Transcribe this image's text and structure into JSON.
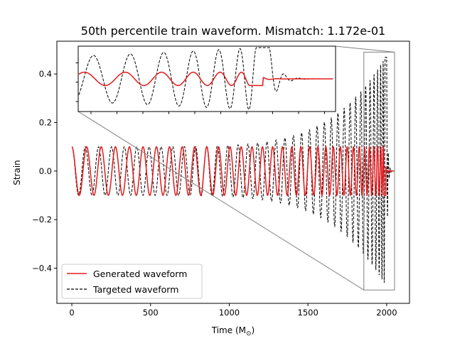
{
  "chart_data": {
    "type": "line",
    "title": "50th percentile train waveform. Mismatch: 1.172e-01",
    "xlabel": "Time (M$_\\odot$)",
    "xlabel_main": "Time (M",
    "xlabel_sub": "⊙",
    "xlabel_close": ")",
    "ylabel": "Strain",
    "xlim": [
      -95,
      2145
    ],
    "ylim": [
      -0.545,
      0.535
    ],
    "xticks": [
      0,
      500,
      1000,
      1500,
      2000
    ],
    "xtick_labels": [
      "0",
      "500",
      "1000",
      "1500",
      "2000"
    ],
    "yticks": [
      -0.4,
      -0.2,
      0.0,
      0.2,
      0.4
    ],
    "ytick_labels": [
      "−0.4",
      "−0.2",
      "0.0",
      "0.2",
      "0.4"
    ],
    "grid": false,
    "legend_position": "lower-left",
    "series": [
      {
        "name": "Generated waveform",
        "color": "#e31a1c",
        "style": "solid",
        "model": {
          "t_start": 0,
          "t_end": 2048,
          "cycles": 33.5,
          "amp_start": 0.1,
          "amp_end": 0.1,
          "peak_time": 1995,
          "ringdown_amp": 0.02,
          "end_value": 0.0
        }
      },
      {
        "name": "Targeted waveform",
        "color": "#000000",
        "style": "dashed",
        "model": {
          "t_start": 0,
          "t_end": 2048,
          "cycles": 37,
          "amp_start": 0.1,
          "amp_end": 0.48,
          "peak_time": 2000,
          "ringdown_amp": 0.45,
          "end_value": 0.0
        }
      }
    ],
    "inset": {
      "zoom_xlim": [
        1855,
        2050
      ],
      "zoom_ylim": [
        -0.49,
        0.49
      ],
      "connector_color": "#808080"
    }
  }
}
